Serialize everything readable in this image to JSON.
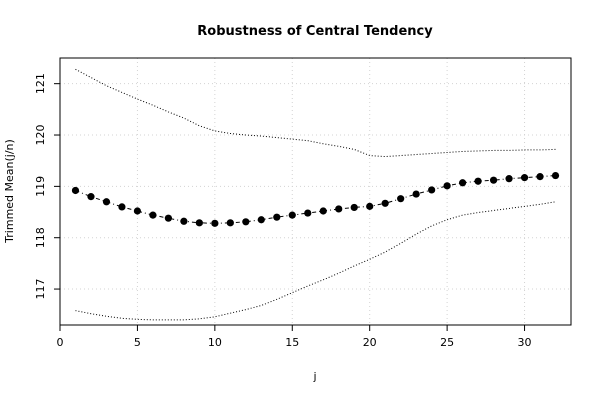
{
  "chart_data": {
    "type": "line",
    "title": "Robustness of Central Tendency",
    "xlabel": "j",
    "ylabel": "Trimmed Mean(j/n)",
    "xlim": [
      0,
      33
    ],
    "ylim": [
      116.3,
      121.5
    ],
    "x_ticks": [
      0,
      5,
      10,
      15,
      20,
      25,
      30
    ],
    "y_ticks": [
      117,
      118,
      119,
      120,
      121
    ],
    "grid": true,
    "x": [
      1,
      2,
      3,
      4,
      5,
      6,
      7,
      8,
      9,
      10,
      11,
      12,
      13,
      14,
      15,
      16,
      17,
      18,
      19,
      20,
      21,
      22,
      23,
      24,
      25,
      26,
      27,
      28,
      29,
      30,
      31,
      32
    ],
    "series": [
      {
        "role": "trimmed-mean",
        "values": [
          118.92,
          118.8,
          118.7,
          118.6,
          118.52,
          118.44,
          118.38,
          118.32,
          118.29,
          118.28,
          118.29,
          118.31,
          118.35,
          118.4,
          118.44,
          118.48,
          118.52,
          118.56,
          118.59,
          118.61,
          118.67,
          118.76,
          118.85,
          118.93,
          119.01,
          119.07,
          119.1,
          119.12,
          119.15,
          119.17,
          119.19,
          119.21
        ]
      },
      {
        "role": "upper-bound",
        "values": [
          121.28,
          121.12,
          120.96,
          120.83,
          120.7,
          120.58,
          120.45,
          120.33,
          120.18,
          120.08,
          120.03,
          120.0,
          119.98,
          119.95,
          119.92,
          119.89,
          119.83,
          119.78,
          119.72,
          119.6,
          119.58,
          119.6,
          119.62,
          119.64,
          119.66,
          119.68,
          119.69,
          119.7,
          119.7,
          119.71,
          119.71,
          119.72
        ]
      },
      {
        "role": "lower-bound",
        "values": [
          116.58,
          116.52,
          116.47,
          116.43,
          116.41,
          116.4,
          116.4,
          116.4,
          116.42,
          116.46,
          116.53,
          116.6,
          116.68,
          116.8,
          116.93,
          117.06,
          117.18,
          117.31,
          117.45,
          117.58,
          117.72,
          117.89,
          118.07,
          118.23,
          118.35,
          118.44,
          118.49,
          118.53,
          118.57,
          118.61,
          118.65,
          118.7
        ]
      }
    ]
  }
}
